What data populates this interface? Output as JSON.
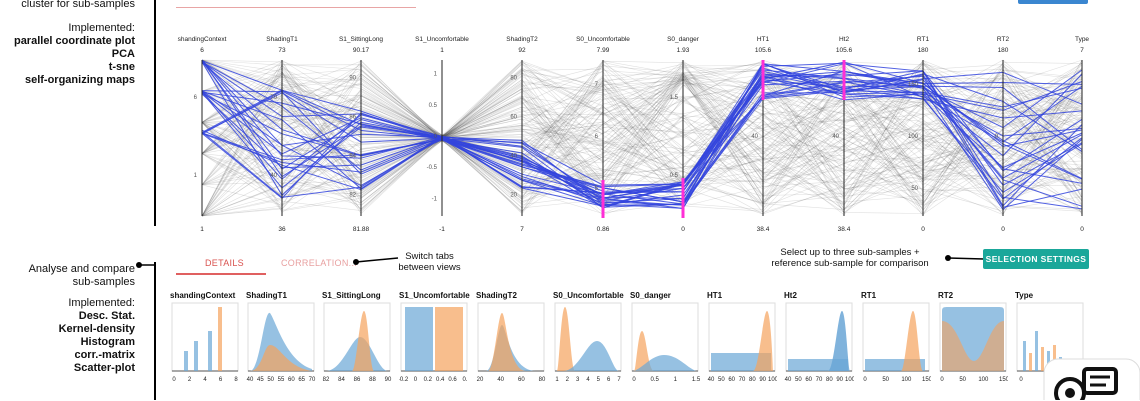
{
  "left_panel": {
    "top_line1": "cluster for sub-samples",
    "implemented_label": "Implemented:",
    "methods_top": [
      "parallel coordinate plot",
      "PCA",
      "t-sne",
      "self-organizing maps"
    ],
    "analyse_line1": "Analyse and compare",
    "analyse_line2": "sub-samples",
    "implemented_label2": "Implemented:",
    "methods_bottom": [
      "Desc. Stat.",
      "Kernel-density",
      "Histogram",
      "corr.-matrix",
      "Scatter-plot"
    ]
  },
  "parallel_plot": {
    "axes": [
      {
        "name": "shandingContext",
        "max": "6",
        "min": "1",
        "ticks": [
          "6",
          "1"
        ]
      },
      {
        "name": "ShadingT1",
        "max": "73",
        "min": "36",
        "ticks": [
          "70",
          "40"
        ]
      },
      {
        "name": "S1_SittingLong",
        "max": "90.17",
        "min": "81.88",
        "ticks": [
          "90",
          "86",
          "84",
          "82"
        ]
      },
      {
        "name": "S1_Uncomfortable",
        "max": "1",
        "min": "-1",
        "ticks": [
          "1",
          "0.5",
          "0",
          "-0.5",
          "-1"
        ]
      },
      {
        "name": "ShadingT2",
        "max": "92",
        "min": "7",
        "ticks": [
          "80",
          "60",
          "40",
          "20"
        ]
      },
      {
        "name": "S0_Uncomfortable",
        "max": "7.99",
        "min": "0.86",
        "ticks": [
          "7",
          "6",
          "5"
        ]
      },
      {
        "name": "S0_danger",
        "max": "1.93",
        "min": "0",
        "ticks": [
          "1.5",
          "0.5"
        ]
      },
      {
        "name": "HT1",
        "max": "105.6",
        "min": "38.4",
        "ticks": [
          "40"
        ]
      },
      {
        "name": "Ht2",
        "max": "105.6",
        "min": "38.4",
        "ticks": [
          "40"
        ]
      },
      {
        "name": "RT1",
        "max": "180",
        "min": "0",
        "ticks": [
          "150",
          "100",
          "50"
        ]
      },
      {
        "name": "RT2",
        "max": "180",
        "min": "0",
        "ticks": [
          "0"
        ]
      },
      {
        "name": "Type",
        "max": "7",
        "min": "0",
        "ticks": []
      }
    ]
  },
  "tabs": {
    "details": "DETAILS",
    "correlation": "CORRELATION..."
  },
  "notes": {
    "switch_line1": "Switch tabs",
    "switch_line2": "between views",
    "select_line1": "Select up to three sub-samples +",
    "select_line2": "reference  sub-sample for comparison"
  },
  "selection_button": "SELECTION SETTINGS",
  "density_cards": [
    {
      "title": "shandingContext",
      "ticks": [
        "0",
        "2",
        "4",
        "6",
        "8"
      ]
    },
    {
      "title": "ShadingT1",
      "ticks": [
        "40",
        "45",
        "50",
        "55",
        "60",
        "65",
        "70"
      ]
    },
    {
      "title": "S1_SittingLong",
      "ticks": [
        "82",
        "84",
        "86",
        "88",
        "90"
      ]
    },
    {
      "title": "S1_Uncomfortable",
      "ticks": [
        "-0.2",
        "0",
        "0.2",
        "0.4",
        "0.6",
        "0."
      ]
    },
    {
      "title": "ShadingT2",
      "ticks": [
        "20",
        "40",
        "60",
        "80"
      ]
    },
    {
      "title": "S0_Uncomfortable",
      "ticks": [
        "1",
        "2",
        "3",
        "4",
        "5",
        "6",
        "7"
      ]
    },
    {
      "title": "S0_danger",
      "ticks": [
        "0",
        "0.5",
        "1",
        "1.5"
      ]
    },
    {
      "title": "HT1",
      "ticks": [
        "40",
        "50",
        "60",
        "70",
        "80",
        "90",
        "100"
      ]
    },
    {
      "title": "Ht2",
      "ticks": [
        "40",
        "50",
        "60",
        "70",
        "80",
        "90",
        "100"
      ]
    },
    {
      "title": "RT1",
      "ticks": [
        "0",
        "50",
        "100",
        "150"
      ]
    },
    {
      "title": "RT2",
      "ticks": [
        "0",
        "50",
        "100",
        "150"
      ]
    },
    {
      "title": "Type",
      "ticks": [
        "0"
      ]
    }
  ],
  "colors": {
    "blue": "#3344dd",
    "orange": "#f5a25d",
    "lightblue": "#6aa6d6",
    "teal": "#1aa79a",
    "pink": "#ff2fd6"
  }
}
